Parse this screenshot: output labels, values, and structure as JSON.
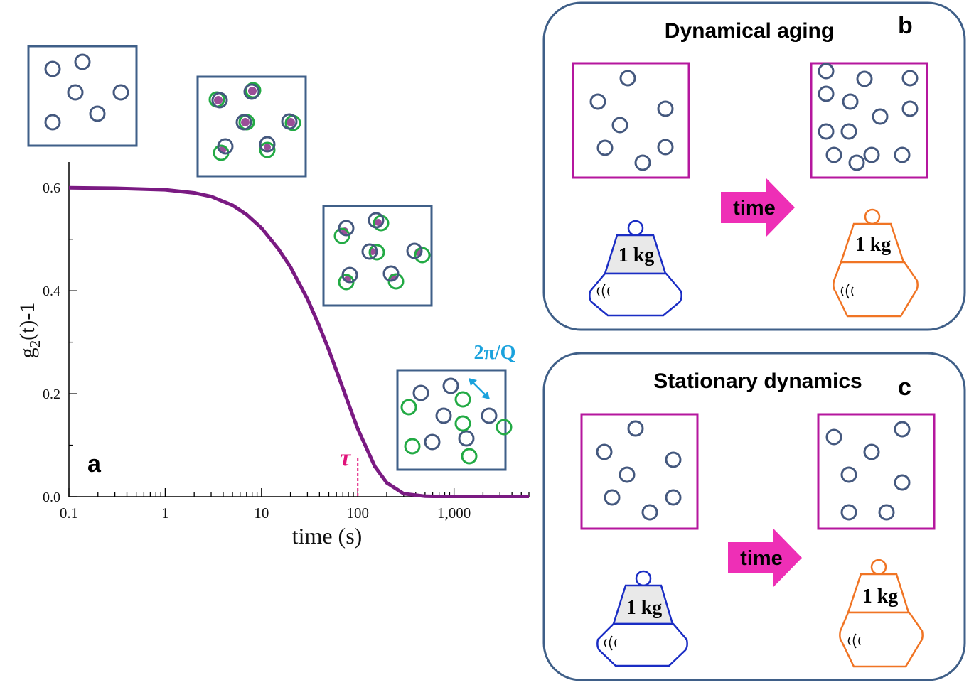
{
  "colors": {
    "frame": "#3f5f88",
    "particle": "#44587e",
    "moved": "#22aa44",
    "overlap": "#9b4e98",
    "curve": "#7a1a82",
    "tau": "#e0127a",
    "wavelength": "#1aa2dd",
    "box": "#b5179e",
    "arrow": "#ee2fb6",
    "weight_old": "#1a2dc4",
    "weight_new": "#f07424",
    "weight_fill": "#e9e9e9"
  },
  "panel_a": {
    "label": "a",
    "tau_label": "τ",
    "tau_value": 100,
    "wavelength_label": "2π/Q"
  },
  "panel_b": {
    "label": "b",
    "title": "Dynamical aging",
    "arrow_label": "time",
    "weight_label": "1 kg"
  },
  "panel_c": {
    "label": "c",
    "title": "Stationary dynamics",
    "arrow_label": "time",
    "weight_label": "1 kg"
  },
  "chart_data": {
    "type": "line",
    "xlabel": "time (s)",
    "ylabel_base": "g",
    "ylabel_sub": "2",
    "ylabel_rest": "(t)-1",
    "x_scale": "log",
    "xlim": [
      0.1,
      6000
    ],
    "ylim": [
      0,
      0.65
    ],
    "x_ticks": [
      0.1,
      1,
      10,
      100,
      1000
    ],
    "x_tick_labels": [
      "0.1",
      "1",
      "10",
      "100",
      "1,000"
    ],
    "y_ticks": [
      0,
      0.2,
      0.4,
      0.6
    ],
    "y_tick_labels": [
      "0.0",
      "0.2",
      "0.4",
      "0.6"
    ],
    "series": [
      {
        "x": [
          0.1,
          0.3,
          1,
          2,
          3,
          5,
          7,
          10,
          15,
          20,
          30,
          40,
          50,
          60,
          70,
          80,
          100,
          150,
          200,
          300,
          500,
          1000,
          6000
        ],
        "y": [
          0.6,
          0.599,
          0.596,
          0.59,
          0.583,
          0.566,
          0.548,
          0.522,
          0.481,
          0.446,
          0.384,
          0.331,
          0.285,
          0.245,
          0.211,
          0.181,
          0.132,
          0.059,
          0.027,
          0.006,
          0.001,
          0.0,
          0.0
        ]
      }
    ]
  }
}
